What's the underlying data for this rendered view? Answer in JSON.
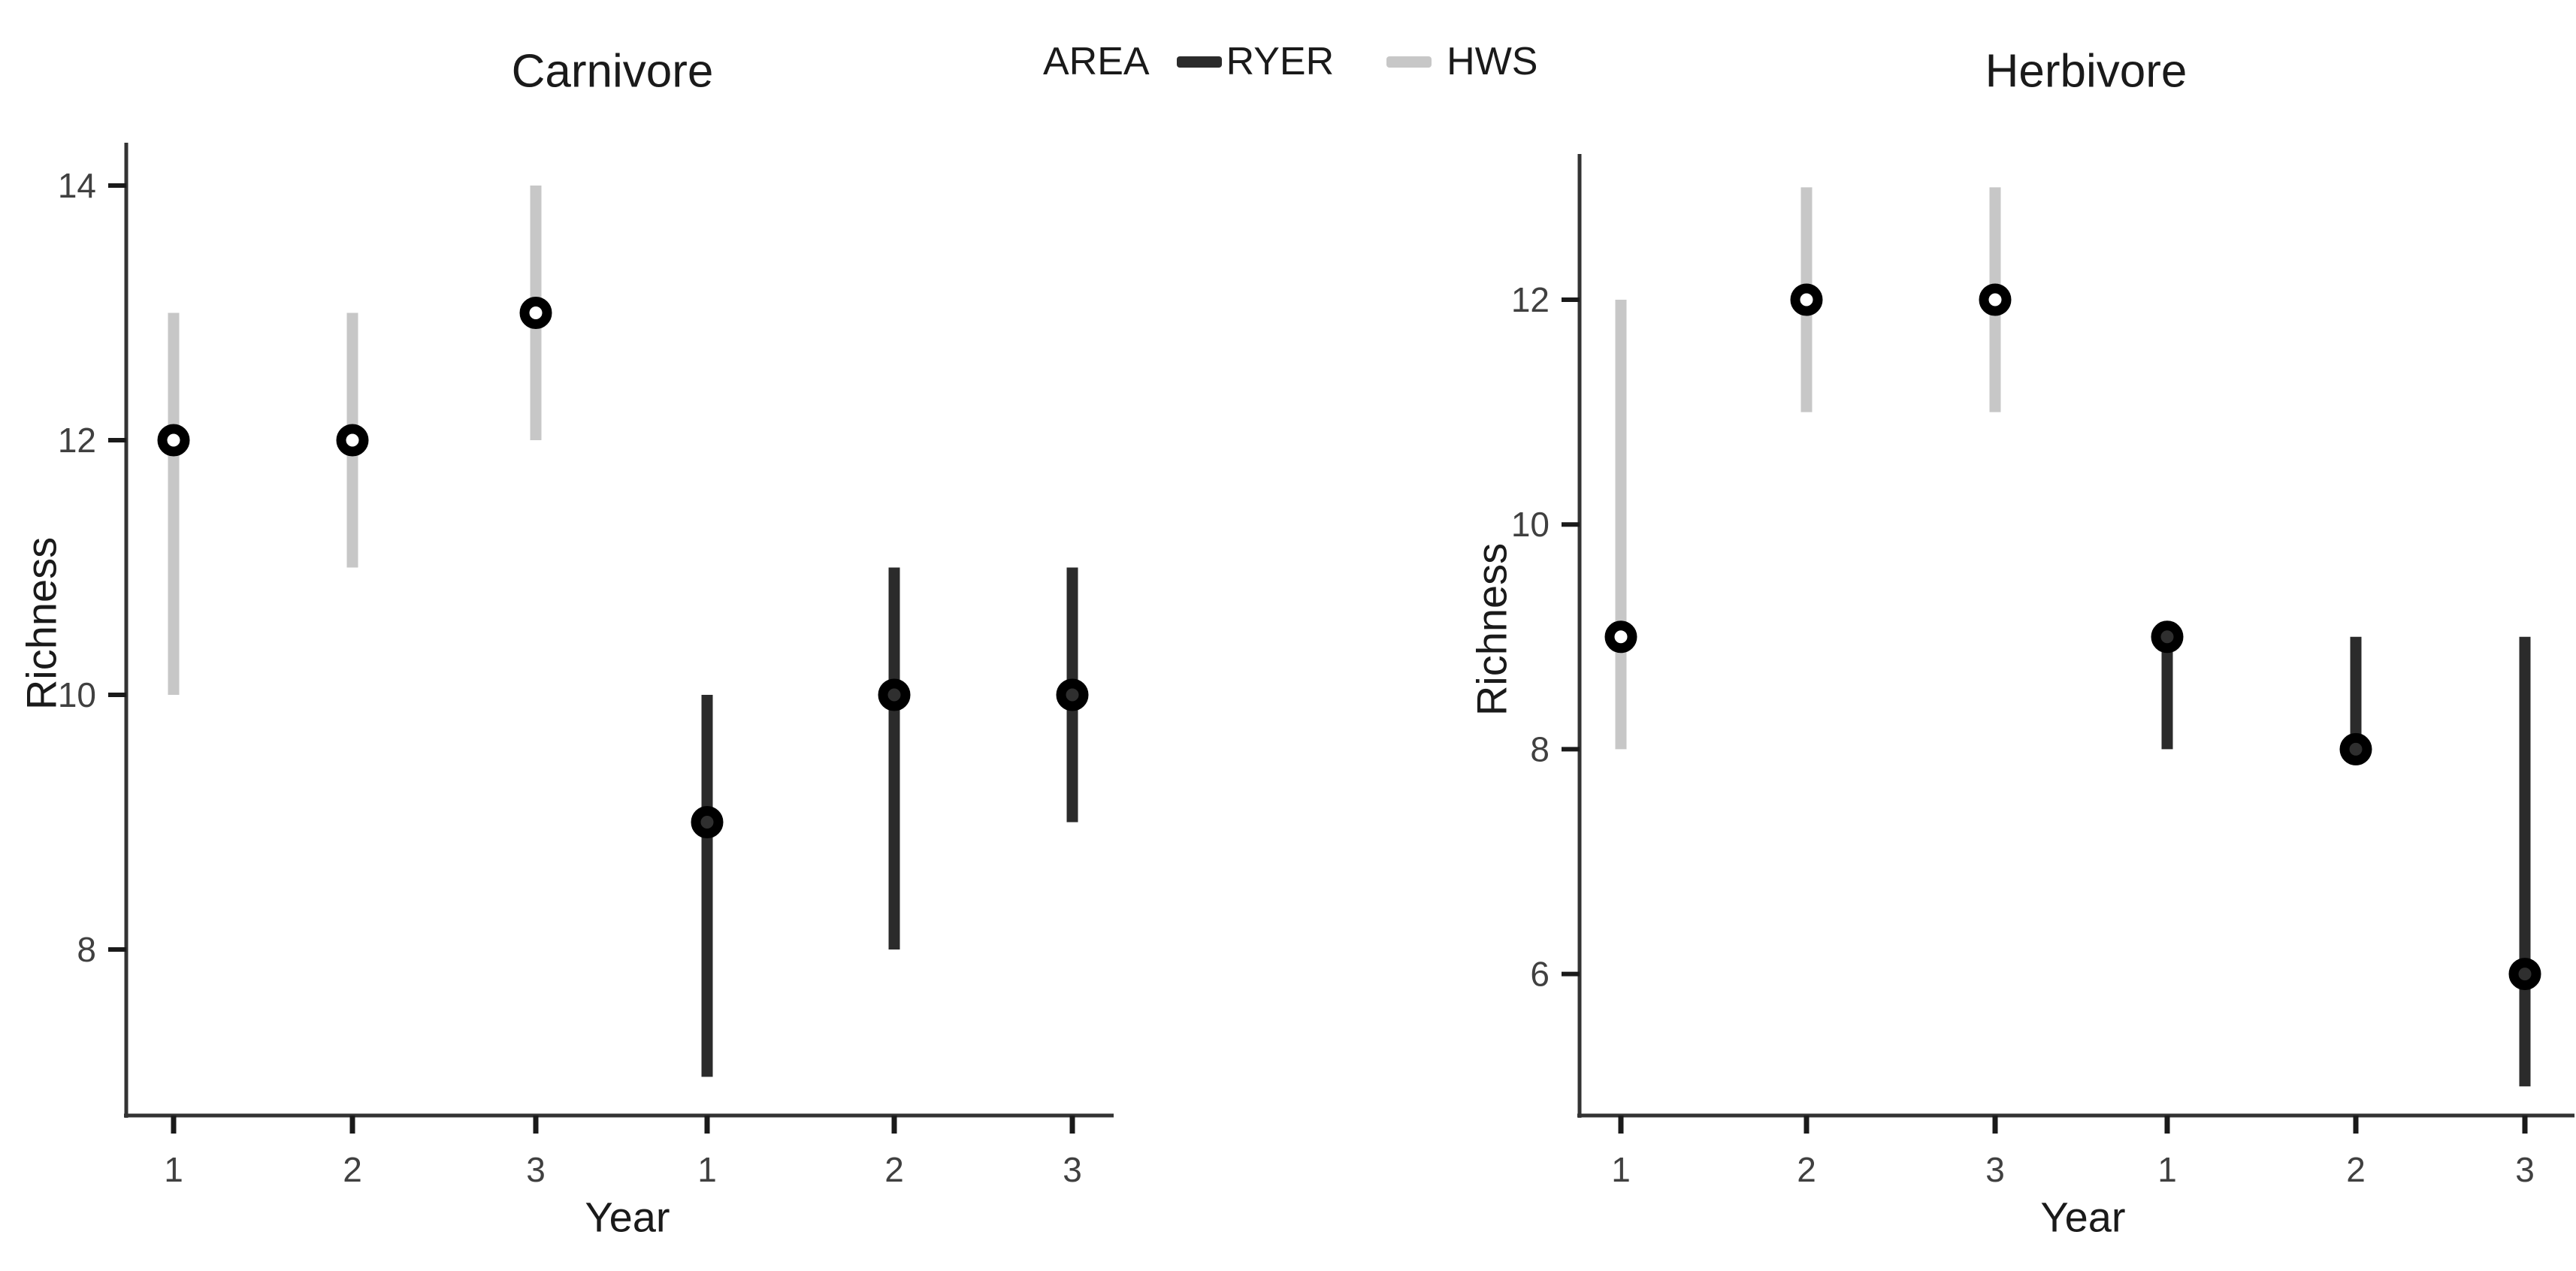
{
  "figure": {
    "background": "#ffffff",
    "legend": {
      "title": "AREA",
      "entries": [
        {
          "label": "RYER",
          "color": "#2b2b2b"
        },
        {
          "label": "HWS",
          "color": "#c7c7c7"
        }
      ]
    },
    "styles": {
      "axis_color": "#333333",
      "tick_mark_color": "#1a1a1a",
      "tick_label_color": "#404040",
      "text_color": "#1a1a1a",
      "marker_stroke": "#000000",
      "hws_point_fill": "#ffffff",
      "ryer_point_fill": "#2f2f2f"
    }
  },
  "chart_data": [
    {
      "type": "pointrange",
      "panel": "left",
      "title": "Carnivore",
      "xlabel": "Year",
      "ylabel": "Richness",
      "x_tick_labels": [
        "1",
        "2",
        "3",
        "1",
        "2",
        "3"
      ],
      "y_ticks": [
        14,
        12,
        10,
        8
      ],
      "ylim": [
        6.7,
        14.4
      ],
      "grid": false,
      "legend_position": "top-center",
      "series": [
        {
          "name": "HWS",
          "color": "#c7c7c7",
          "marker": "open-circle",
          "slots": [
            0,
            1,
            2
          ],
          "points": [
            {
              "year": 1,
              "estimate": 12,
              "ci_low": 10,
              "ci_high": 13
            },
            {
              "year": 2,
              "estimate": 12,
              "ci_low": 11,
              "ci_high": 13
            },
            {
              "year": 3,
              "estimate": 13,
              "ci_low": 12,
              "ci_high": 14
            }
          ]
        },
        {
          "name": "RYER",
          "color": "#2b2b2b",
          "marker": "filled-circle",
          "slots": [
            3,
            4,
            5
          ],
          "points": [
            {
              "year": 1,
              "estimate": 9,
              "ci_low": 7,
              "ci_high": 10
            },
            {
              "year": 2,
              "estimate": 10,
              "ci_low": 8,
              "ci_high": 11
            },
            {
              "year": 3,
              "estimate": 10,
              "ci_low": 9,
              "ci_high": 11
            }
          ]
        }
      ]
    },
    {
      "type": "pointrange",
      "panel": "right",
      "title": "Herbivore",
      "xlabel": "Year",
      "ylabel": "Richness",
      "x_tick_labels": [
        "1",
        "2",
        "3",
        "1",
        "2",
        "3"
      ],
      "y_ticks": [
        12,
        10,
        8,
        6
      ],
      "ylim": [
        4.8,
        13.3
      ],
      "grid": false,
      "legend_position": "top-center",
      "series": [
        {
          "name": "HWS",
          "color": "#c7c7c7",
          "marker": "open-circle",
          "slots": [
            0,
            1,
            2
          ],
          "points": [
            {
              "year": 1,
              "estimate": 9,
              "ci_low": 8,
              "ci_high": 12
            },
            {
              "year": 2,
              "estimate": 12,
              "ci_low": 11,
              "ci_high": 13
            },
            {
              "year": 3,
              "estimate": 12,
              "ci_low": 11,
              "ci_high": 13
            }
          ]
        },
        {
          "name": "RYER",
          "color": "#2b2b2b",
          "marker": "filled-circle",
          "slots": [
            3,
            4,
            5
          ],
          "points": [
            {
              "year": 1,
              "estimate": 9,
              "ci_low": 8,
              "ci_high": 9
            },
            {
              "year": 2,
              "estimate": 8,
              "ci_low": 8,
              "ci_high": 9
            },
            {
              "year": 3,
              "estimate": 6,
              "ci_low": 5,
              "ci_high": 9
            }
          ]
        }
      ]
    }
  ]
}
